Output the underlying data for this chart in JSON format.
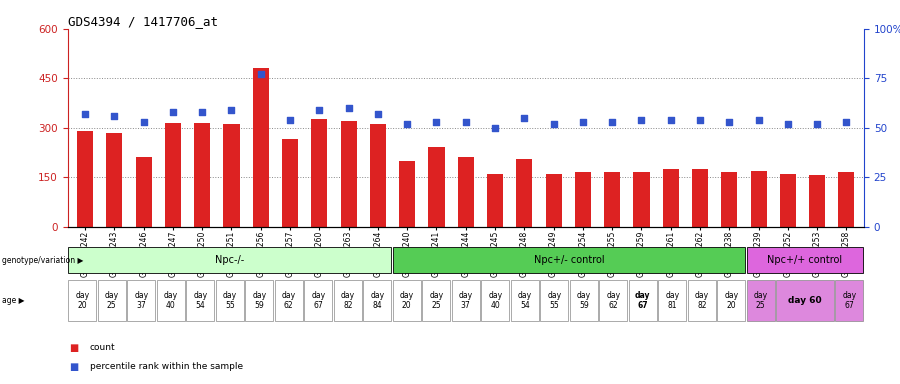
{
  "title": "GDS4394 / 1417706_at",
  "samples": [
    "GSM973242",
    "GSM973243",
    "GSM973246",
    "GSM973247",
    "GSM973250",
    "GSM973251",
    "GSM973256",
    "GSM973257",
    "GSM973260",
    "GSM973263",
    "GSM973264",
    "GSM973240",
    "GSM973241",
    "GSM973244",
    "GSM973245",
    "GSM973248",
    "GSM973249",
    "GSM973254",
    "GSM973255",
    "GSM973259",
    "GSM973261",
    "GSM973262",
    "GSM973238",
    "GSM973239",
    "GSM973252",
    "GSM973253",
    "GSM973258"
  ],
  "counts": [
    290,
    285,
    210,
    315,
    315,
    310,
    480,
    265,
    325,
    320,
    310,
    200,
    240,
    210,
    160,
    205,
    160,
    165,
    165,
    165,
    175,
    175,
    165,
    170,
    160,
    155,
    165
  ],
  "percentile_ranks": [
    57,
    56,
    53,
    58,
    58,
    59,
    77,
    54,
    59,
    60,
    57,
    52,
    53,
    53,
    50,
    55,
    52,
    53,
    53,
    54,
    54,
    54,
    53,
    54,
    52,
    52,
    53
  ],
  "groups": [
    {
      "label": "Npc-/-",
      "start": 0,
      "end": 11,
      "color": "#ccffcc"
    },
    {
      "label": "Npc+/- control",
      "start": 11,
      "end": 23,
      "color": "#55cc55"
    },
    {
      "label": "Npc+/+ control",
      "start": 23,
      "end": 27,
      "color": "#dd66dd"
    }
  ],
  "ages_text": [
    "day\n20",
    "day\n25",
    "day\n37",
    "day\n40",
    "day\n54",
    "day\n55",
    "day\n59",
    "day\n62",
    "day\n67",
    "day\n82",
    "day\n84",
    "day\n20",
    "day\n25",
    "day\n37",
    "day\n40",
    "day\n54",
    "day\n55",
    "day\n59",
    "day\n62",
    "day\n67",
    "day\n81",
    "day\n82",
    "day\n20",
    "day\n25",
    "day 60",
    "",
    "day\n67"
  ],
  "age_merged": [
    24
  ],
  "age_bold_idx": [
    19,
    24
  ],
  "ylim_left": [
    0,
    600
  ],
  "ylim_right": [
    0,
    100
  ],
  "yticks_left": [
    0,
    150,
    300,
    450,
    600
  ],
  "yticks_right": [
    0,
    25,
    50,
    75,
    100
  ],
  "bar_color": "#dd2222",
  "dot_color": "#3355cc",
  "grid_color": "#888888",
  "bg_color": "#ffffff",
  "left_axis_color": "#cc2222",
  "right_axis_color": "#2244cc"
}
